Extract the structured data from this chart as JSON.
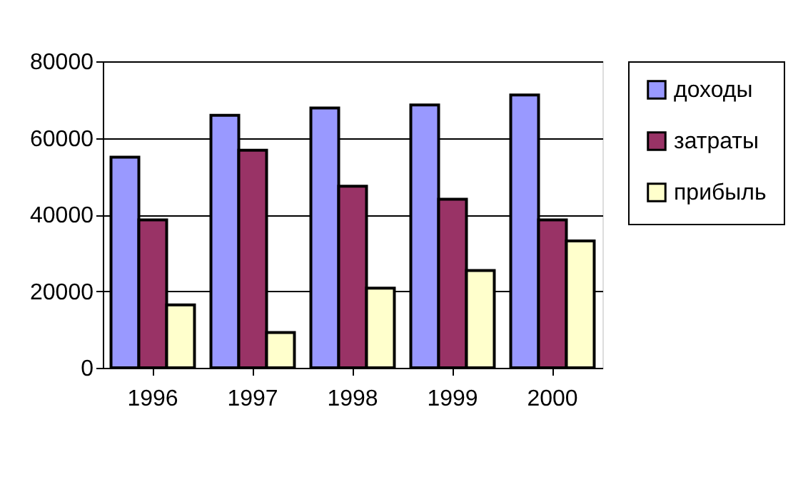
{
  "chart_data": {
    "type": "bar",
    "categories": [
      "1996",
      "1997",
      "1998",
      "1999",
      "2000"
    ],
    "series": [
      {
        "name": "доходы",
        "color": "#9999ff",
        "values": [
          55000,
          65900,
          67800,
          68600,
          71200
        ]
      },
      {
        "name": "затраты",
        "color": "#993366",
        "values": [
          38600,
          56800,
          47400,
          44000,
          38600
        ]
      },
      {
        "name": "прибыль",
        "color": "#ffffcc",
        "values": [
          16400,
          9200,
          20800,
          25400,
          33100
        ]
      }
    ],
    "ylim": [
      0,
      80000
    ],
    "yticks": [
      0,
      20000,
      40000,
      60000,
      80000
    ],
    "grid": "y",
    "legend": "right"
  }
}
